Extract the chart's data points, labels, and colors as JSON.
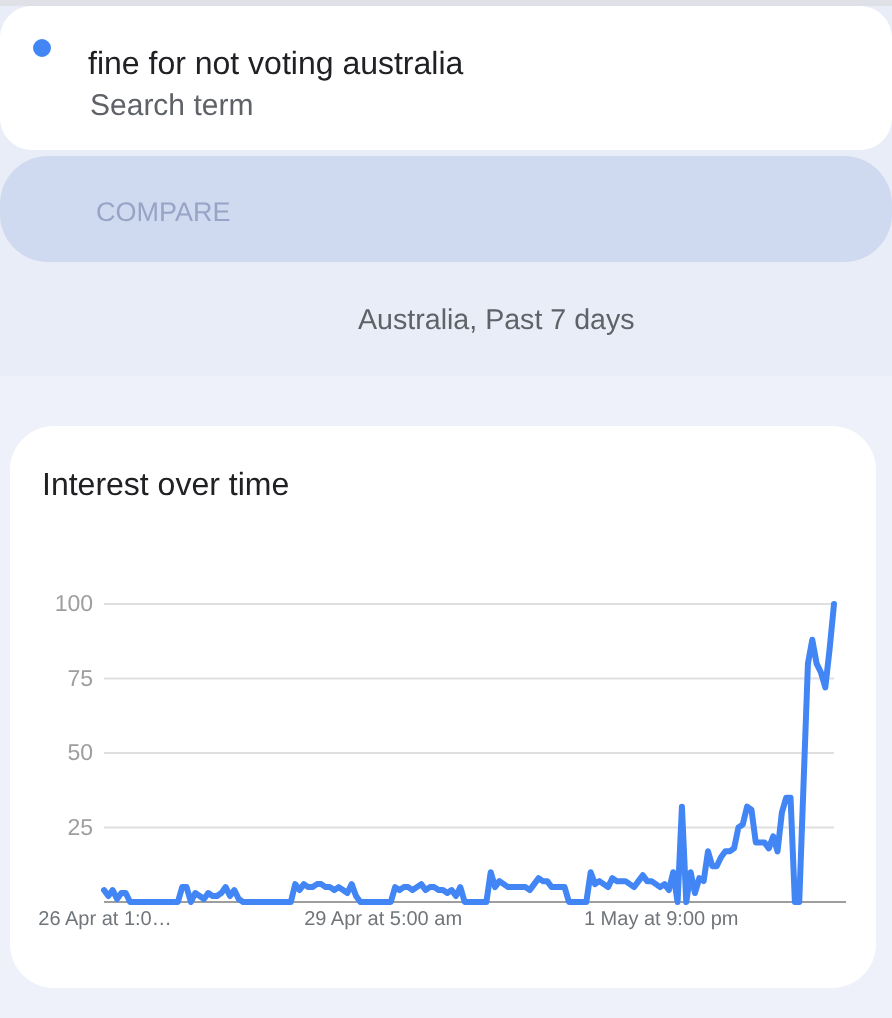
{
  "chart_data": {
    "type": "line",
    "title": "Interest over time",
    "subtitle": "Australia, Past 7 days",
    "annotations": [
      "Search term",
      "COMPARE"
    ],
    "categories": [
      "26 Apr at 1:0…",
      null,
      null,
      null,
      null,
      null,
      null,
      null,
      null,
      null,
      null,
      null,
      null,
      null,
      null,
      null,
      null,
      null,
      null,
      null,
      null,
      null,
      null,
      null,
      null,
      null,
      null,
      null,
      null,
      null,
      null,
      null,
      null,
      null,
      null,
      null,
      null,
      null,
      null,
      null,
      null,
      null,
      null,
      null,
      null,
      null,
      null,
      null,
      null,
      null,
      null,
      null,
      null,
      null,
      null,
      null,
      null,
      null,
      null,
      null,
      null,
      null,
      null,
      null,
      "29 Apr at 5:00 am",
      null,
      null,
      null,
      null,
      null,
      null,
      null,
      null,
      null,
      null,
      null,
      null,
      null,
      null,
      null,
      null,
      null,
      null,
      null,
      null,
      null,
      null,
      null,
      null,
      null,
      null,
      null,
      null,
      null,
      null,
      null,
      null,
      null,
      null,
      null,
      null,
      null,
      null,
      null,
      null,
      null,
      null,
      null,
      null,
      null,
      null,
      null,
      null,
      null,
      null,
      null,
      null,
      null,
      null,
      null,
      null,
      null,
      null,
      null,
      null,
      null,
      null,
      null,
      "1 May at 9:00 pm",
      null,
      null,
      null,
      null,
      null,
      null,
      null,
      null,
      null,
      null,
      null,
      null,
      null,
      null,
      null,
      null,
      null,
      null,
      null,
      null,
      null,
      null,
      null,
      null,
      null,
      null,
      null,
      null,
      null,
      null,
      null,
      null,
      null,
      null,
      null,
      null,
      null,
      null,
      null,
      null
    ],
    "series": [
      {
        "name": "fine for not voting australia",
        "color": "#4285f4",
        "values": [
          4,
          2,
          4,
          1,
          3,
          3,
          0,
          0,
          0,
          0,
          0,
          0,
          0,
          0,
          0,
          0,
          0,
          0,
          5,
          5,
          0,
          3,
          2,
          1,
          3,
          2,
          2,
          3,
          5,
          2,
          4,
          1,
          0,
          0,
          0,
          0,
          0,
          0,
          0,
          0,
          0,
          0,
          0,
          0,
          6,
          4,
          6,
          5,
          5,
          6,
          6,
          5,
          5,
          4,
          5,
          4,
          3,
          6,
          2,
          0,
          0,
          0,
          0,
          0,
          0,
          0,
          0,
          5,
          4,
          5,
          5,
          4,
          5,
          6,
          4,
          5,
          5,
          4,
          4,
          3,
          4,
          2,
          5,
          0,
          0,
          0,
          0,
          0,
          0,
          10,
          5,
          7,
          6,
          5,
          5,
          5,
          5,
          5,
          4,
          6,
          8,
          7,
          7,
          5,
          5,
          5,
          5,
          0,
          0,
          0,
          0,
          0,
          10,
          6,
          7,
          6,
          5,
          8,
          7,
          7,
          7,
          6,
          5,
          7,
          9,
          7,
          7,
          6,
          5,
          6,
          4,
          10,
          0,
          32,
          0,
          10,
          3,
          8,
          7,
          17,
          12,
          12,
          15,
          17,
          17,
          18,
          25,
          26,
          32,
          31,
          20,
          20,
          20,
          18,
          22,
          17,
          30,
          35,
          35,
          0,
          0,
          40,
          80,
          88,
          80,
          77,
          72,
          85,
          100
        ]
      }
    ],
    "ylim": [
      0,
      100
    ],
    "yticks": [
      25,
      50,
      75,
      100
    ],
    "grid": "y",
    "legend": "top left"
  }
}
